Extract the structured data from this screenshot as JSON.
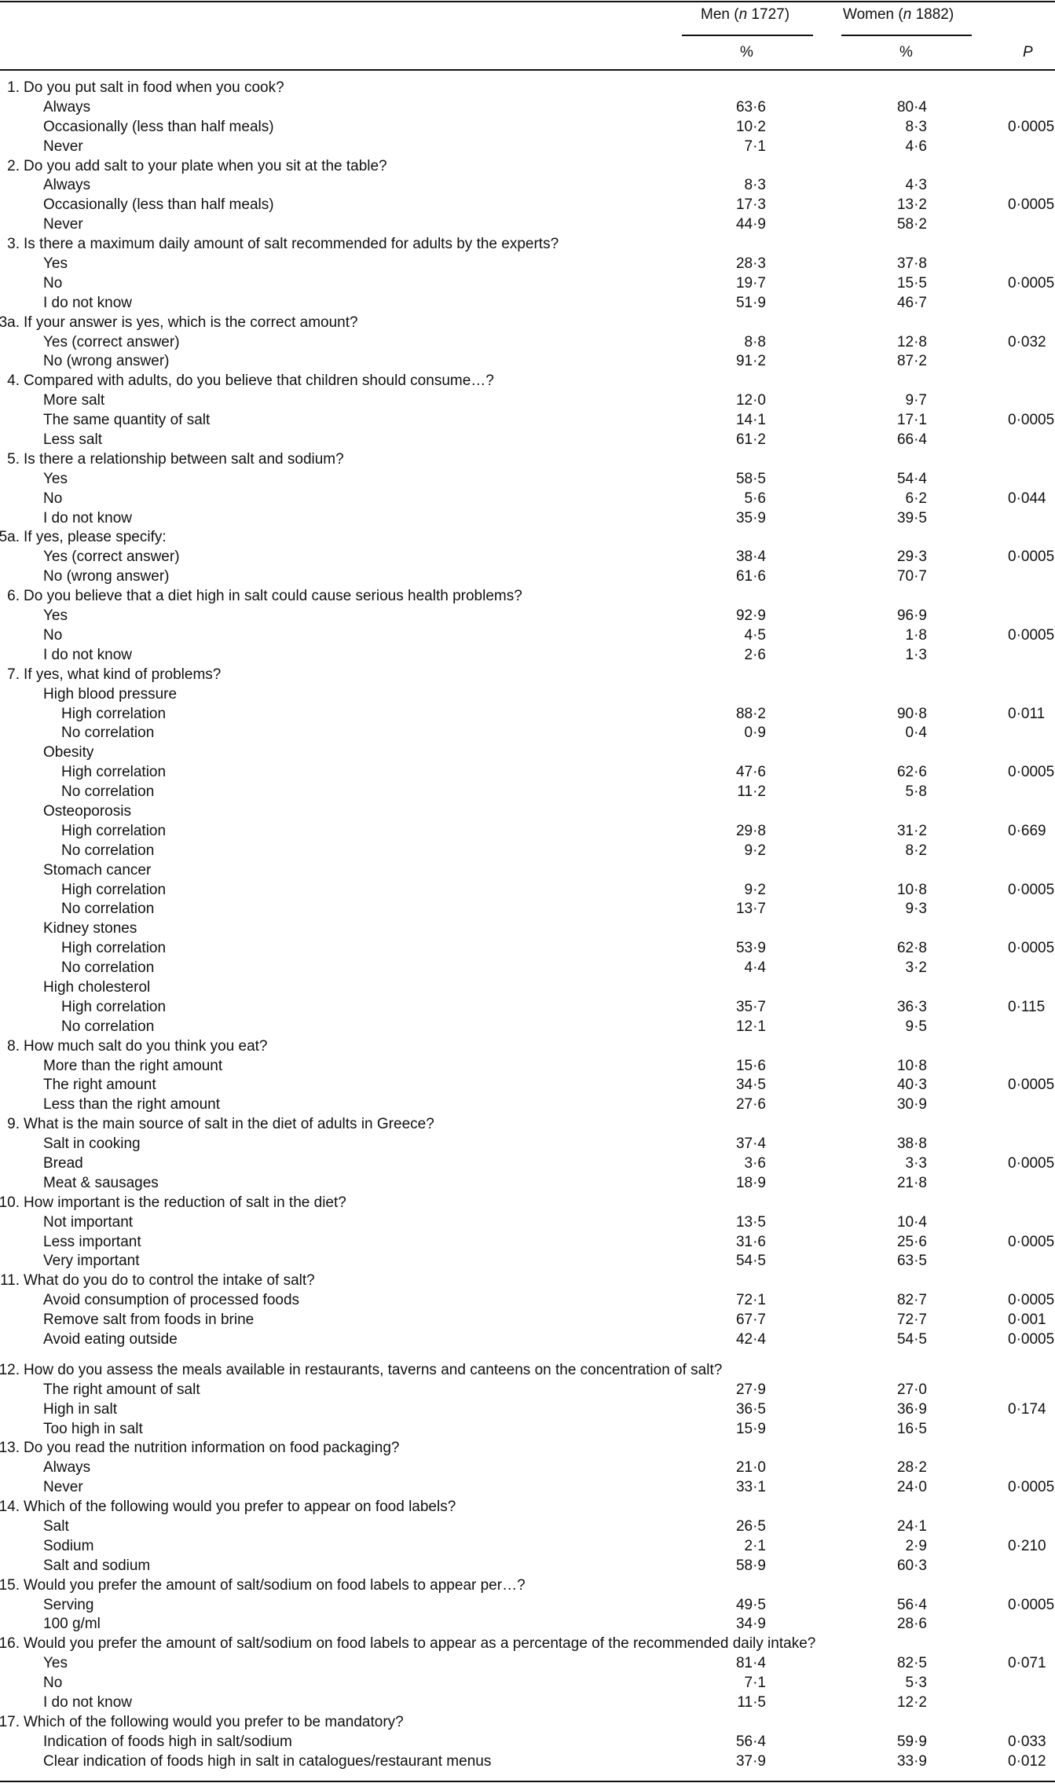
{
  "header": {
    "men_label": "Men (",
    "men_n": "n",
    "men_count": " 1727)",
    "women_label": "Women (",
    "women_n": "n",
    "women_count": " 1882)",
    "men_unit": "%",
    "women_unit": "%",
    "p_label": "P"
  },
  "rows": [
    {
      "num": "1.",
      "label": "Do you put salt in food when you cook?",
      "level": 0
    },
    {
      "label": "Always",
      "level": 1,
      "men": "63·6",
      "women": "80·4"
    },
    {
      "label": "Occasionally (less than half meals)",
      "level": 1,
      "men": "10·2",
      "women": "8·3",
      "p": "0·0005"
    },
    {
      "label": "Never",
      "level": 1,
      "men": "7·1",
      "women": "4·6"
    },
    {
      "num": "2.",
      "label": "Do you add salt to your plate when you sit at the table?",
      "level": 0
    },
    {
      "label": "Always",
      "level": 1,
      "men": "8·3",
      "women": "4·3"
    },
    {
      "label": "Occasionally (less than half meals)",
      "level": 1,
      "men": "17·3",
      "women": "13·2",
      "p": "0·0005"
    },
    {
      "label": "Never",
      "level": 1,
      "men": "44·9",
      "women": "58·2"
    },
    {
      "num": "3.",
      "label": "Is there a maximum daily amount of salt recommended for adults by the experts?",
      "level": 0
    },
    {
      "label": "Yes",
      "level": 1,
      "men": "28·3",
      "women": "37·8"
    },
    {
      "label": "No",
      "level": 1,
      "men": "19·7",
      "women": "15·5",
      "p": "0·0005"
    },
    {
      "label": "I do not know",
      "level": 1,
      "men": "51·9",
      "women": "46·7"
    },
    {
      "num": "3a.",
      "label": "If your answer is yes, which is the correct amount?",
      "level": 0
    },
    {
      "label": "Yes (correct answer)",
      "level": 1,
      "men": "8·8",
      "women": "12·8",
      "p": "0·032"
    },
    {
      "label": "No (wrong answer)",
      "level": 1,
      "men": "91·2",
      "women": "87·2"
    },
    {
      "num": "4.",
      "label": "Compared with adults, do you believe that children should consume…?",
      "level": 0
    },
    {
      "label": "More salt",
      "level": 1,
      "men": "12·0",
      "women": "9·7"
    },
    {
      "label": "The same quantity of salt",
      "level": 1,
      "men": "14·1",
      "women": "17·1",
      "p": "0·0005"
    },
    {
      "label": "Less salt",
      "level": 1,
      "men": "61·2",
      "women": "66·4"
    },
    {
      "num": "5.",
      "label": "Is there a relationship between salt and sodium?",
      "level": 0
    },
    {
      "label": "Yes",
      "level": 1,
      "men": "58·5",
      "women": "54·4"
    },
    {
      "label": "No",
      "level": 1,
      "men": "5·6",
      "women": "6·2",
      "p": "0·044"
    },
    {
      "label": "I do not know",
      "level": 1,
      "men": "35·9",
      "women": "39·5"
    },
    {
      "num": "5a.",
      "label": "If yes, please specify:",
      "level": 0
    },
    {
      "label": "Yes (correct answer)",
      "level": 1,
      "men": "38·4",
      "women": "29·3",
      "p": "0·0005"
    },
    {
      "label": "No (wrong answer)",
      "level": 1,
      "men": "61·6",
      "women": "70·7"
    },
    {
      "num": "6.",
      "label": "Do you believe that a diet high in salt could cause serious health problems?",
      "level": 0
    },
    {
      "label": "Yes",
      "level": 1,
      "men": "92·9",
      "women": "96·9"
    },
    {
      "label": "No",
      "level": 1,
      "men": "4·5",
      "women": "1·8",
      "p": "0·0005"
    },
    {
      "label": "I do not know",
      "level": 1,
      "men": "2·6",
      "women": "1·3"
    },
    {
      "num": "7.",
      "label": "If yes, what kind of problems?",
      "level": 0
    },
    {
      "label": "High blood pressure",
      "level": 1
    },
    {
      "label": "High correlation",
      "level": 2,
      "men": "88·2",
      "women": "90·8",
      "p": "0·011"
    },
    {
      "label": "No correlation",
      "level": 2,
      "men": "0·9",
      "women": "0·4"
    },
    {
      "label": "Obesity",
      "level": 1
    },
    {
      "label": "High correlation",
      "level": 2,
      "men": "47·6",
      "women": "62·6",
      "p": "0·0005"
    },
    {
      "label": "No correlation",
      "level": 2,
      "men": "11·2",
      "women": "5·8"
    },
    {
      "label": "Osteoporosis",
      "level": 1
    },
    {
      "label": "High correlation",
      "level": 2,
      "men": "29·8",
      "women": "31·2",
      "p": "0·669"
    },
    {
      "label": "No correlation",
      "level": 2,
      "men": "9·2",
      "women": "8·2"
    },
    {
      "label": "Stomach cancer",
      "level": 1
    },
    {
      "label": "High correlation",
      "level": 2,
      "men": "9·2",
      "women": "10·8",
      "p": "0·0005"
    },
    {
      "label": "No correlation",
      "level": 2,
      "men": "13·7",
      "women": "9·3"
    },
    {
      "label": "Kidney stones",
      "level": 1
    },
    {
      "label": "High correlation",
      "level": 2,
      "men": "53·9",
      "women": "62·8",
      "p": "0·0005"
    },
    {
      "label": "No correlation",
      "level": 2,
      "men": "4·4",
      "women": "3·2"
    },
    {
      "label": "High cholesterol",
      "level": 1
    },
    {
      "label": "High correlation",
      "level": 2,
      "men": "35·7",
      "women": "36·3",
      "p": "0·115"
    },
    {
      "label": "No correlation",
      "level": 2,
      "men": "12·1",
      "women": "9·5"
    },
    {
      "num": "8.",
      "label": "How much salt do you think you eat?",
      "level": 0
    },
    {
      "label": "More than the right amount",
      "level": 1,
      "men": "15·6",
      "women": "10·8"
    },
    {
      "label": "The right amount",
      "level": 1,
      "men": "34·5",
      "women": "40·3",
      "p": "0·0005"
    },
    {
      "label": "Less than the right amount",
      "level": 1,
      "men": "27·6",
      "women": "30·9"
    },
    {
      "num": "9.",
      "label": "What is the main source of salt in the diet of adults in Greece?",
      "level": 0
    },
    {
      "label": "Salt in cooking",
      "level": 1,
      "men": "37·4",
      "women": "38·8"
    },
    {
      "label": "Bread",
      "level": 1,
      "men": "3·6",
      "women": "3·3",
      "p": "0·0005"
    },
    {
      "label": "Meat & sausages",
      "level": 1,
      "men": "18·9",
      "women": "21·8"
    },
    {
      "num": "10.",
      "label": "How important is the reduction of salt in the diet?",
      "level": 0
    },
    {
      "label": "Not important",
      "level": 1,
      "men": "13·5",
      "women": "10·4"
    },
    {
      "label": "Less important",
      "level": 1,
      "men": "31·6",
      "women": "25·6",
      "p": "0·0005"
    },
    {
      "label": "Very important",
      "level": 1,
      "men": "54·5",
      "women": "63·5"
    },
    {
      "num": "11.",
      "label": "What do you do to control the intake of salt?",
      "level": 0
    },
    {
      "label": "Avoid consumption of processed foods",
      "level": 1,
      "men": "72·1",
      "women": "82·7",
      "p": "0·0005"
    },
    {
      "label": "Remove salt from foods in brine",
      "level": 1,
      "men": "67·7",
      "women": "72·7",
      "p": "0·001"
    },
    {
      "label": "Avoid eating outside",
      "level": 1,
      "men": "42·4",
      "women": "54·5",
      "p": "0·0005"
    },
    {
      "num": "12.",
      "label": "How do you assess the meals available in restaurants, taverns and canteens on the concentration of salt?",
      "level": 0,
      "gap": true
    },
    {
      "label": "The right amount of salt",
      "level": 1,
      "men": "27·9",
      "women": "27·0"
    },
    {
      "label": "High in salt",
      "level": 1,
      "men": "36·5",
      "women": "36·9",
      "p": "0·174"
    },
    {
      "label": "Too high in salt",
      "level": 1,
      "men": "15·9",
      "women": "16·5"
    },
    {
      "num": "13.",
      "label": "Do you read the nutrition information on food packaging?",
      "level": 0
    },
    {
      "label": "Always",
      "level": 1,
      "men": "21·0",
      "women": "28·2"
    },
    {
      "label": "Never",
      "level": 1,
      "men": "33·1",
      "women": "24·0",
      "p": "0·0005"
    },
    {
      "num": "14.",
      "label": "Which of the following would you prefer to appear on food labels?",
      "level": 0
    },
    {
      "label": "Salt",
      "level": 1,
      "men": "26·5",
      "women": "24·1"
    },
    {
      "label": "Sodium",
      "level": 1,
      "men": "2·1",
      "women": "2·9",
      "p": "0·210"
    },
    {
      "label": "Salt and sodium",
      "level": 1,
      "men": "58·9",
      "women": "60·3"
    },
    {
      "num": "15.",
      "label": "Would you prefer the amount of salt/sodium on food labels to appear per…?",
      "level": 0
    },
    {
      "label": "Serving",
      "level": 1,
      "men": "49·5",
      "women": "56·4",
      "p": "0·0005"
    },
    {
      "label": "100 g/ml",
      "level": 1,
      "men": "34·9",
      "women": "28·6"
    },
    {
      "num": "16.",
      "label": "Would you prefer the amount of salt/sodium on food labels to appear as a percentage of the recommended daily intake?",
      "level": 0
    },
    {
      "label": "Yes",
      "level": 1,
      "men": "81·4",
      "women": "82·5",
      "p": "0·071"
    },
    {
      "label": "No",
      "level": 1,
      "men": "7·1",
      "women": "5·3"
    },
    {
      "label": "I do not know",
      "level": 1,
      "men": "11·5",
      "women": "12·2"
    },
    {
      "num": "17.",
      "label": "Which of the following would you prefer to be mandatory?",
      "level": 0
    },
    {
      "label": "Indication of foods high in salt/sodium",
      "level": 1,
      "men": "56·4",
      "women": "59·9",
      "p": "0·033"
    },
    {
      "label": "Clear indication of foods high in salt in catalogues/restaurant menus",
      "level": 1,
      "men": "37·9",
      "women": "33·9",
      "p": "0·012"
    }
  ]
}
